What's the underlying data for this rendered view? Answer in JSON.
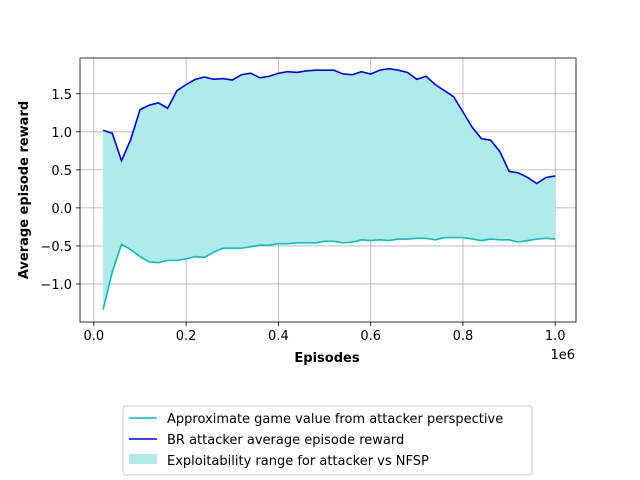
{
  "chart_data": {
    "type": "line",
    "xlabel": "Episodes",
    "ylabel": "Average episode reward",
    "x_offset_text": "1e6",
    "xlim": [
      -0.03,
      1.045
    ],
    "ylim": [
      -1.5,
      1.97
    ],
    "grid": true,
    "legend_placement": "below-center",
    "x_ticks": [
      0.0,
      0.2,
      0.4,
      0.6,
      0.8,
      1.0
    ],
    "x_tick_labels": [
      "0.0",
      "0.2",
      "0.4",
      "0.6",
      "0.8",
      "1.0"
    ],
    "y_ticks": [
      -1.0,
      -0.5,
      0.0,
      0.5,
      1.0,
      1.5
    ],
    "y_tick_labels": [
      "−1.0",
      "−0.5",
      "0.0",
      "0.5",
      "1.0",
      "1.5"
    ],
    "x": [
      0.02,
      0.04,
      0.06,
      0.08,
      0.1,
      0.12,
      0.14,
      0.16,
      0.18,
      0.2,
      0.22,
      0.24,
      0.26,
      0.28,
      0.3,
      0.32,
      0.34,
      0.36,
      0.38,
      0.4,
      0.42,
      0.44,
      0.46,
      0.48,
      0.5,
      0.52,
      0.54,
      0.56,
      0.58,
      0.6,
      0.62,
      0.64,
      0.66,
      0.68,
      0.7,
      0.72,
      0.74,
      0.76,
      0.78,
      0.8,
      0.82,
      0.84,
      0.86,
      0.88,
      0.9,
      0.92,
      0.94,
      0.96,
      0.98,
      1.0
    ],
    "series": [
      {
        "name": "BR attacker average episode reward",
        "color": "#0000ff",
        "values": [
          1.02,
          0.98,
          0.62,
          0.9,
          1.29,
          1.35,
          1.38,
          1.31,
          1.54,
          1.62,
          1.69,
          1.72,
          1.69,
          1.7,
          1.68,
          1.75,
          1.77,
          1.71,
          1.73,
          1.77,
          1.79,
          1.78,
          1.8,
          1.81,
          1.81,
          1.81,
          1.76,
          1.75,
          1.79,
          1.76,
          1.81,
          1.83,
          1.81,
          1.78,
          1.69,
          1.73,
          1.62,
          1.54,
          1.46,
          1.26,
          1.06,
          0.91,
          0.89,
          0.74,
          0.48,
          0.46,
          0.4,
          0.32,
          0.4,
          0.42
        ]
      },
      {
        "name": "Approximate game value from attacker perspective",
        "color": "#00bfbf",
        "values": [
          -1.34,
          -0.84,
          -0.48,
          -0.55,
          -0.64,
          -0.71,
          -0.72,
          -0.69,
          -0.69,
          -0.67,
          -0.64,
          -0.65,
          -0.58,
          -0.53,
          -0.53,
          -0.53,
          -0.51,
          -0.49,
          -0.49,
          -0.47,
          -0.47,
          -0.46,
          -0.46,
          -0.46,
          -0.44,
          -0.44,
          -0.46,
          -0.45,
          -0.42,
          -0.43,
          -0.42,
          -0.43,
          -0.41,
          -0.41,
          -0.4,
          -0.4,
          -0.42,
          -0.39,
          -0.39,
          -0.39,
          -0.41,
          -0.43,
          -0.41,
          -0.42,
          -0.42,
          -0.45,
          -0.43,
          -0.41,
          -0.4,
          -0.41
        ]
      }
    ],
    "fill": {
      "name": "Exploitability range for attacker vs NFSP",
      "color": "#b0ebeb"
    },
    "colors": {
      "grid": "#b0b0b0",
      "axes": "#000000"
    }
  }
}
